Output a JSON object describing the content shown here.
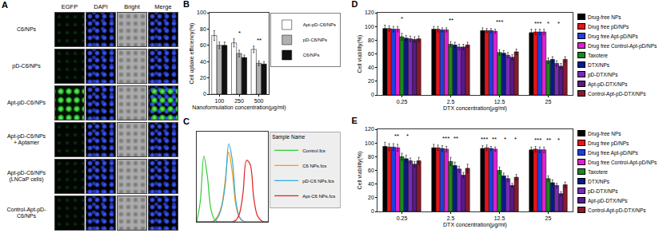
{
  "image_grid": {
    "title": "A",
    "columns": [
      "EGFP",
      "DAPI",
      "Bright",
      "Merge"
    ],
    "rows": [
      "C6/NPs",
      "pD-C6/NPs",
      "Apt-pD-C6/NPs",
      "Apt-pD-C6/NPs\n+ Aptamer",
      "Apt-pD-C6/NPs\n(LNCaP cells)",
      "Control-Apt-pD-\nC6/NPs"
    ]
  },
  "chart_data": [
    {
      "type": "bar",
      "title": "B",
      "categories": [
        "100",
        "250",
        "500"
      ],
      "xlabel": "Nanoformulation concentration(μg/ml)",
      "ylabel": "Cell uptake efficiency(%)",
      "ylim": [
        0,
        100
      ],
      "yticks": [
        0,
        20,
        40,
        60,
        80,
        100
      ],
      "grid": false,
      "legend": "right",
      "series": [
        {
          "name": "Apt-pD-C6/NPs",
          "color": "#ffffff",
          "values": [
            72,
            63,
            55
          ],
          "errors": [
            6,
            5,
            4
          ]
        },
        {
          "name": "pD-C6/NPs",
          "color": "#b0b0b0",
          "values": [
            60,
            50,
            38
          ],
          "errors": [
            4,
            4,
            3
          ]
        },
        {
          "name": "C6/NPs",
          "color": "#111111",
          "values": [
            60,
            45,
            37
          ],
          "errors": [
            4,
            3,
            3
          ]
        }
      ],
      "annotations": [
        {
          "text": "*",
          "category": "250"
        },
        {
          "text": "**",
          "category": "500"
        }
      ]
    },
    {
      "type": "line",
      "title": "C",
      "x": [
        0,
        5,
        10,
        15,
        20,
        25,
        30,
        35,
        40,
        45,
        50,
        55,
        60,
        65,
        70,
        75,
        80,
        85,
        90,
        95,
        100
      ],
      "xlim": [
        0,
        100
      ],
      "ylim": [
        0,
        110
      ],
      "grid": false,
      "tick_labels": false,
      "legend": "right",
      "legend_title": "Sample Name",
      "series": [
        {
          "name": "Control.fcs",
          "color": "#33cc33",
          "values": [
            0,
            25,
            80,
            55,
            15,
            3,
            0,
            0,
            0,
            0,
            0,
            0,
            0,
            0,
            0,
            0,
            0,
            0,
            0,
            0,
            0
          ]
        },
        {
          "name": "C6 NPs.fcs",
          "color": "#ff9900",
          "values": [
            0,
            0,
            0,
            0,
            0,
            2,
            8,
            20,
            50,
            85,
            60,
            20,
            5,
            1,
            0,
            0,
            0,
            0,
            0,
            0,
            0
          ]
        },
        {
          "name": "pD-C6 NPs.fcs",
          "color": "#33aadd",
          "values": [
            0,
            0,
            0,
            0,
            0,
            1,
            6,
            18,
            45,
            95,
            75,
            25,
            6,
            1,
            0,
            0,
            0,
            0,
            0,
            0,
            0
          ]
        },
        {
          "name": "Apt-C6 NPs.fcs",
          "color": "#e02020",
          "values": [
            0,
            0,
            0,
            0,
            0,
            0,
            0,
            0,
            0,
            0,
            0,
            2,
            10,
            35,
            75,
            70,
            30,
            8,
            2,
            0,
            0
          ]
        }
      ]
    },
    {
      "type": "bar",
      "title": "D",
      "categories": [
        "0.25",
        "2.5",
        "12.5",
        "25"
      ],
      "xlabel": "DTX concentration(μg/ml)",
      "ylabel": "Cell viability(%)",
      "ylim": [
        0,
        120
      ],
      "yticks": [
        0,
        20,
        40,
        60,
        80,
        100,
        120
      ],
      "grid": false,
      "legend": "right",
      "series": [
        {
          "name": "Drug-free NPs",
          "color": "#000000",
          "values": [
            97,
            96,
            94,
            91
          ],
          "errors": [
            5,
            4,
            4,
            5
          ]
        },
        {
          "name": "Drug free pD/NPs",
          "color": "#e8141b",
          "values": [
            97,
            96,
            94,
            92
          ],
          "errors": [
            4,
            4,
            3,
            4
          ]
        },
        {
          "name": "Drug free Apt-pD/NPs",
          "color": "#1f3fe0",
          "values": [
            96,
            95,
            94,
            92
          ],
          "errors": [
            4,
            3,
            3,
            4
          ]
        },
        {
          "name": "Drug free Control-Apt-pD/NPs",
          "color": "#e020d0",
          "values": [
            96,
            95,
            93,
            92
          ],
          "errors": [
            4,
            3,
            3,
            4
          ]
        },
        {
          "name": "Taxotere",
          "color": "#1a8a1a",
          "values": [
            85,
            74,
            62,
            50
          ],
          "errors": [
            5,
            4,
            4,
            4
          ]
        },
        {
          "name": "DTX/NPs",
          "color": "#0a1a8a",
          "values": [
            83,
            73,
            61,
            52
          ],
          "errors": [
            4,
            4,
            4,
            4
          ]
        },
        {
          "name": "pD-DTX/NPs",
          "color": "#7a2ab8",
          "values": [
            82,
            70,
            58,
            46
          ],
          "errors": [
            4,
            4,
            4,
            4
          ]
        },
        {
          "name": "Apt-pD-DTX/NPs",
          "color": "#5a1a8a",
          "values": [
            81,
            70,
            55,
            42
          ],
          "errors": [
            4,
            4,
            4,
            4
          ]
        },
        {
          "name": "Control-Apt-pD-DTX/NPs",
          "color": "#8a1a2a",
          "values": [
            82,
            73,
            63,
            52
          ],
          "errors": [
            4,
            4,
            4,
            4
          ]
        }
      ],
      "annotations": [
        {
          "text": "*",
          "category": "0.25"
        },
        {
          "text": "**",
          "category": "2.5"
        },
        {
          "text": "***",
          "category": "12.5"
        },
        {
          "text": "***",
          "category": "25"
        },
        {
          "text": "*",
          "category": "25"
        },
        {
          "text": "*",
          "category": "25"
        }
      ]
    },
    {
      "type": "bar",
      "title": "E",
      "categories": [
        "0.25",
        "2.5",
        "12.5",
        "25"
      ],
      "xlabel": "DTX concentration(μg/ml)",
      "ylabel": "Cell viability(%)",
      "ylim": [
        0,
        120
      ],
      "yticks": [
        0,
        20,
        40,
        60,
        80,
        100,
        120
      ],
      "grid": false,
      "legend": "right",
      "series": [
        {
          "name": "Drug-free NPs",
          "color": "#000000",
          "values": [
            95,
            93,
            92,
            90
          ],
          "errors": [
            6,
            5,
            4,
            4
          ]
        },
        {
          "name": "Drug free pD/NPs",
          "color": "#e8141b",
          "values": [
            94,
            93,
            93,
            91
          ],
          "errors": [
            5,
            4,
            4,
            4
          ]
        },
        {
          "name": "Drug free Apt-pD/NPs",
          "color": "#1f3fe0",
          "values": [
            94,
            92,
            92,
            90
          ],
          "errors": [
            5,
            4,
            3,
            4
          ]
        },
        {
          "name": "Drug free Control-Apt-pD/NPs",
          "color": "#e020d0",
          "values": [
            93,
            91,
            91,
            90
          ],
          "errors": [
            5,
            4,
            3,
            4
          ]
        },
        {
          "name": "Taxotere",
          "color": "#1a8a1a",
          "values": [
            80,
            73,
            60,
            48
          ],
          "errors": [
            5,
            6,
            5,
            4
          ]
        },
        {
          "name": "DTX/NPs",
          "color": "#0a1a8a",
          "values": [
            77,
            67,
            52,
            42
          ],
          "errors": [
            5,
            5,
            4,
            4
          ]
        },
        {
          "name": "pD-DTX/NPs",
          "color": "#7a2ab8",
          "values": [
            74,
            62,
            48,
            38
          ],
          "errors": [
            4,
            4,
            4,
            3
          ]
        },
        {
          "name": "Apt-pD-DTX/NPs",
          "color": "#5a1a8a",
          "values": [
            69,
            53,
            38,
            26
          ],
          "errors": [
            4,
            4,
            3,
            3
          ]
        },
        {
          "name": "Control-Apt-pD-DTX/NPs",
          "color": "#8a1a2a",
          "values": [
            74,
            63,
            50,
            39
          ],
          "errors": [
            5,
            6,
            4,
            4
          ]
        }
      ],
      "annotations": [
        {
          "text": "**",
          "category": "0.25"
        },
        {
          "text": "*",
          "category": "0.25"
        },
        {
          "text": "***",
          "category": "2.5"
        },
        {
          "text": "**",
          "category": "2.5"
        },
        {
          "text": "***",
          "category": "12.5"
        },
        {
          "text": "**",
          "category": "12.5"
        },
        {
          "text": "*",
          "category": "12.5"
        },
        {
          "text": "*",
          "category": "12.5"
        },
        {
          "text": "***",
          "category": "25"
        },
        {
          "text": "**",
          "category": "25"
        },
        {
          "text": "*",
          "category": "25"
        }
      ]
    }
  ]
}
